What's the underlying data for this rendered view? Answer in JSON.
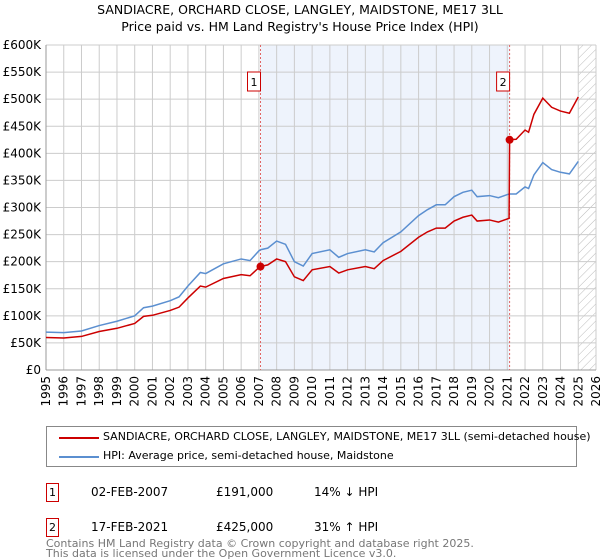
{
  "chart_data": {
    "type": "line",
    "title": "SANDIACRE, ORCHARD CLOSE, LANGLEY, MAIDSTONE, ME17 3LL",
    "subtitle": "Price paid vs. HM Land Registry's House Price Index (HPI)",
    "xlim": [
      1995,
      2026
    ],
    "ylim": [
      0,
      600000
    ],
    "x_ticks": [
      "1995",
      "1996",
      "1997",
      "1998",
      "1999",
      "2000",
      "2001",
      "2002",
      "2003",
      "2004",
      "2005",
      "2006",
      "2007",
      "2008",
      "2009",
      "2010",
      "2011",
      "2012",
      "2013",
      "2014",
      "2015",
      "2016",
      "2017",
      "2018",
      "2019",
      "2020",
      "2021",
      "2022",
      "2023",
      "2024",
      "2025",
      "2026"
    ],
    "y_ticks": [
      {
        "v": 0,
        "label": "£0"
      },
      {
        "v": 50000,
        "label": "£50K"
      },
      {
        "v": 100000,
        "label": "£100K"
      },
      {
        "v": 150000,
        "label": "£150K"
      },
      {
        "v": 200000,
        "label": "£200K"
      },
      {
        "v": 250000,
        "label": "£250K"
      },
      {
        "v": 300000,
        "label": "£300K"
      },
      {
        "v": 350000,
        "label": "£350K"
      },
      {
        "v": 400000,
        "label": "£400K"
      },
      {
        "v": 450000,
        "label": "£450K"
      },
      {
        "v": 500000,
        "label": "£500K"
      },
      {
        "v": 550000,
        "label": "£550K"
      },
      {
        "v": 600000,
        "label": "£600K"
      }
    ],
    "grid": true,
    "x": [
      1995,
      1996,
      1997,
      1998,
      1999,
      2000,
      2000.5,
      2001,
      2002,
      2002.5,
      2003,
      2003.7,
      2004,
      2005,
      2006,
      2006.5,
      2007,
      2007.09,
      2007.5,
      2008,
      2008.5,
      2009,
      2009.5,
      2010,
      2011,
      2011.5,
      2012,
      2013,
      2013.5,
      2014,
      2015,
      2016,
      2016.5,
      2017,
      2017.5,
      2018,
      2018.5,
      2019,
      2019.3,
      2020,
      2020.5,
      2021.1,
      2021.13,
      2021.5,
      2022,
      2022.2,
      2022.5,
      2023,
      2023.5,
      2024,
      2024.5,
      2025
    ],
    "series": [
      {
        "name": "SANDIACRE, ORCHARD CLOSE, LANGLEY, MAIDSTONE, ME17 3LL (semi-detached house)",
        "color": "#cc0000",
        "values": [
          60,
          59,
          62,
          71,
          77,
          86,
          99,
          101,
          110,
          116,
          133,
          155,
          153,
          169,
          176,
          174,
          189,
          191,
          194,
          205,
          200,
          172,
          165,
          185,
          191,
          179,
          185,
          191,
          187,
          202,
          219,
          245,
          255,
          262,
          262,
          275,
          282,
          286,
          275,
          277,
          273,
          280,
          425,
          426,
          443,
          439,
          472,
          502,
          485,
          478,
          474,
          504
        ]
      },
      {
        "name": "HPI: Average price, semi-detached house, Maidstone",
        "color": "#5b8fd0",
        "values": [
          70,
          69,
          72,
          82,
          90,
          100,
          115,
          118,
          128,
          135,
          155,
          180,
          178,
          196,
          205,
          202,
          220,
          222,
          225,
          238,
          232,
          200,
          192,
          215,
          222,
          208,
          215,
          222,
          218,
          235,
          255,
          285,
          296,
          305,
          305,
          320,
          328,
          332,
          320,
          322,
          318,
          325,
          325,
          325,
          338,
          335,
          360,
          383,
          370,
          365,
          362,
          385
        ]
      }
    ],
    "value_unit": "thousand GBP",
    "shaded_range": [
      2007.09,
      2021.13
    ],
    "forecast_hatch_from": 2025.0,
    "legend_placement": "below",
    "sales": [
      {
        "n": "1",
        "x": 2007.09,
        "value": 191,
        "date": "02-FEB-2007",
        "price": "£191,000",
        "hpi": "14% ↓ HPI"
      },
      {
        "n": "2",
        "x": 2021.13,
        "value": 425,
        "date": "17-FEB-2021",
        "price": "£425,000",
        "hpi": "31% ↑ HPI"
      }
    ]
  },
  "footer": {
    "line1": "Contains HM Land Registry data © Crown copyright and database right 2025.",
    "line2": "This data is licensed under the Open Government Licence v3.0."
  }
}
